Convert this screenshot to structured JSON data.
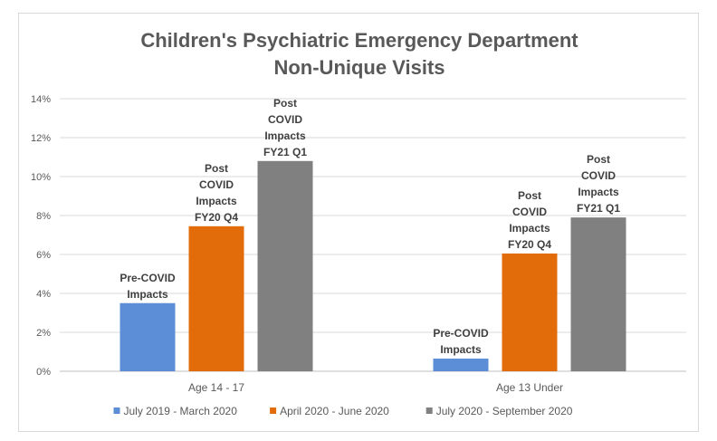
{
  "chart_data": {
    "type": "bar",
    "title_lines": [
      "Children's Psychiatric Emergency Department",
      "Non-Unique Visits"
    ],
    "categories": [
      "Age 14 - 17",
      "Age 13 Under"
    ],
    "series": [
      {
        "name": "July 2019 - March 2020",
        "color": "#5b8ed6",
        "values": [
          3.5,
          0.65
        ],
        "labels": [
          [
            "Pre-COVID",
            "Impacts"
          ],
          [
            "Pre-COVID",
            "Impacts"
          ]
        ]
      },
      {
        "name": "April 2020 - June 2020",
        "color": "#e36c0a",
        "values": [
          7.45,
          6.05
        ],
        "labels": [
          [
            "Post",
            "COVID",
            "Impacts",
            "FY20 Q4"
          ],
          [
            "Post",
            "COVID",
            "Impacts",
            "FY20 Q4"
          ]
        ]
      },
      {
        "name": "July 2020 - September 2020",
        "color": "#808080",
        "values": [
          10.8,
          7.9
        ],
        "labels": [
          [
            "Post",
            "COVID",
            "Impacts",
            "FY21 Q1"
          ],
          [
            "Post",
            "COVID",
            "Impacts",
            "FY21 Q1"
          ]
        ]
      }
    ],
    "ylim": [
      0,
      14
    ],
    "yticks": [
      "0%",
      "2%",
      "4%",
      "6%",
      "8%",
      "10%",
      "12%",
      "14%"
    ],
    "ytick_values": [
      0,
      2,
      4,
      6,
      8,
      10,
      12,
      14
    ],
    "grid": true,
    "legend_position": "bottom"
  }
}
